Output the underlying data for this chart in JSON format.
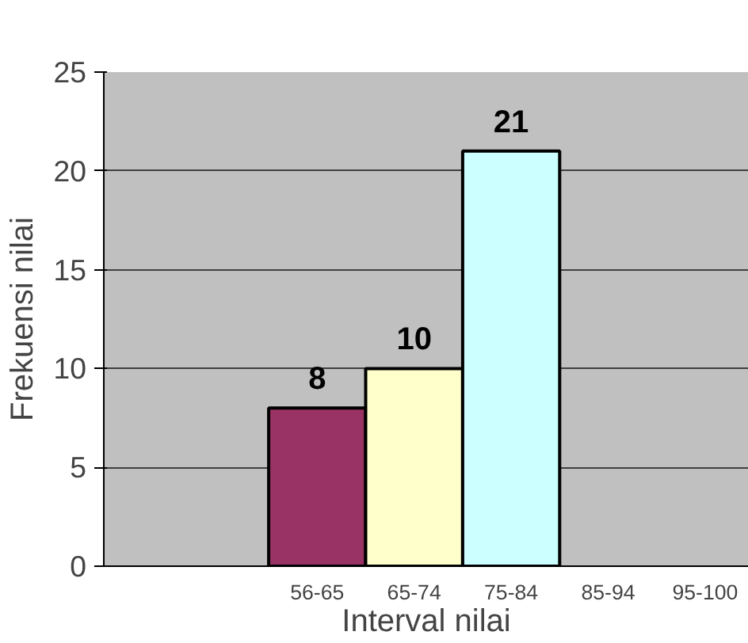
{
  "chart_data": {
    "type": "bar",
    "xlabel": "Interval nilai",
    "ylabel": "Frekuensi nilai",
    "categories": [
      "56-65",
      "65-74",
      "75-84",
      "85-94",
      "95-100"
    ],
    "values": [
      8,
      10,
      21,
      null,
      null
    ],
    "colors": [
      "#993366",
      "#ffffcc",
      "#ccffff",
      "#ccffff",
      "#ccffff"
    ],
    "ylim": [
      0,
      25
    ],
    "yticks": [
      0,
      5,
      10,
      15,
      20,
      25
    ],
    "grid": "y",
    "data_labels": true
  }
}
